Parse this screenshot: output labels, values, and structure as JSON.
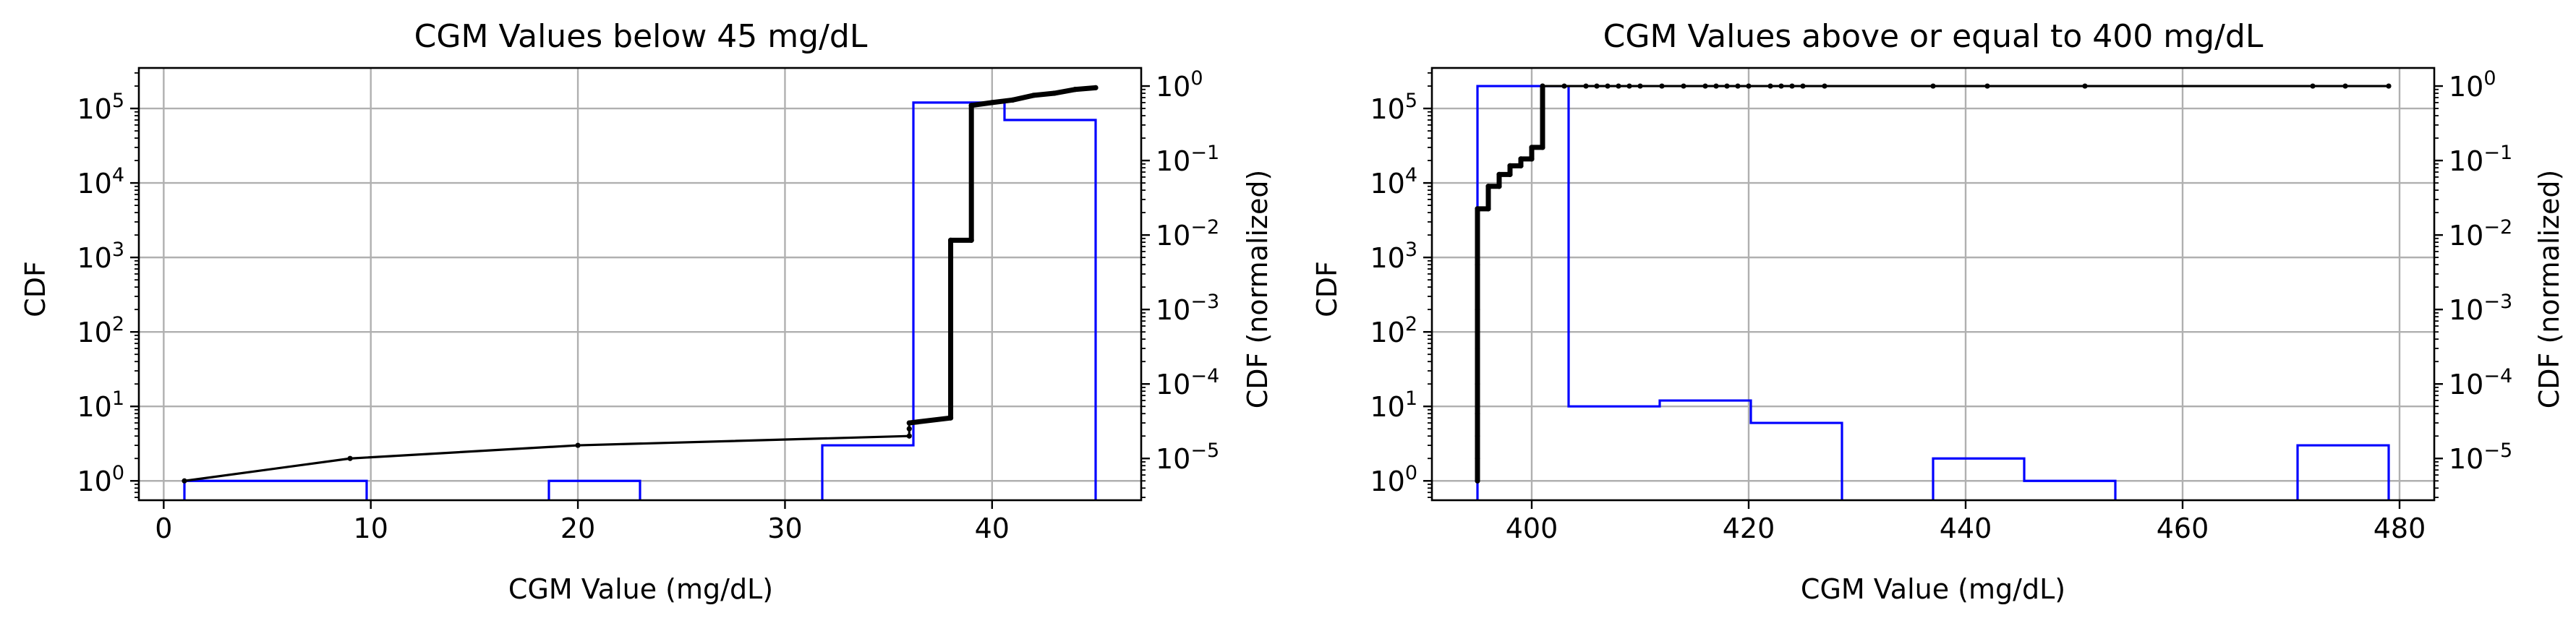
{
  "chart_data": [
    {
      "type": "histogram+step",
      "title": "CGM Values below 45 mg/dL",
      "xlabel": "CGM Value (mg/dL)",
      "ylabel_left": "CDF",
      "ylabel_right": "CDF (normalized)",
      "xlim": [
        -1.2,
        47.2
      ],
      "ylim_left": [
        0.55,
        350000
      ],
      "ylim_right": [
        2.75e-06,
        1.75
      ],
      "xticks": [
        0,
        10,
        20,
        30,
        40
      ],
      "yticks_left": [
        {
          "value": 1,
          "base": "10",
          "exp": "0"
        },
        {
          "value": 10,
          "base": "10",
          "exp": "1"
        },
        {
          "value": 100,
          "base": "10",
          "exp": "2"
        },
        {
          "value": 1000,
          "base": "10",
          "exp": "3"
        },
        {
          "value": 10000,
          "base": "10",
          "exp": "4"
        },
        {
          "value": 100000,
          "base": "10",
          "exp": "5"
        }
      ],
      "yticks_right": [
        {
          "value": 1e-05,
          "base": "10",
          "exp": "−5"
        },
        {
          "value": 0.0001,
          "base": "10",
          "exp": "−4"
        },
        {
          "value": 0.001,
          "base": "10",
          "exp": "−3"
        },
        {
          "value": 0.01,
          "base": "10",
          "exp": "−2"
        },
        {
          "value": 0.1,
          "base": "10",
          "exp": "−1"
        },
        {
          "value": 1,
          "base": "10",
          "exp": "0"
        }
      ],
      "log_scale_y": true,
      "grid": true,
      "histogram_color": "#0000ff",
      "cdf_color": "#000000",
      "histogram_bins": [
        {
          "x0": 1.0,
          "x1": 9.8,
          "count": 1
        },
        {
          "x0": 18.6,
          "x1": 23.0,
          "count": 1
        },
        {
          "x0": 31.8,
          "x1": 36.2,
          "count": 3
        },
        {
          "x0": 36.2,
          "x1": 40.6,
          "count": 120000
        },
        {
          "x0": 40.6,
          "x1": 45.0,
          "count": 70000
        }
      ],
      "cdf_points": [
        {
          "x": 1,
          "y": 1
        },
        {
          "x": 9,
          "y": 2
        },
        {
          "x": 20,
          "y": 3
        },
        {
          "x": 36,
          "y": 4
        },
        {
          "x": 36,
          "y": 5
        },
        {
          "x": 36,
          "y": 6
        },
        {
          "x": 38,
          "y": 7
        },
        {
          "x": 38,
          "y": 1700
        },
        {
          "x": 39,
          "y": 1700
        },
        {
          "x": 39,
          "y": 110000
        },
        {
          "x": 40,
          "y": 120000
        },
        {
          "x": 41,
          "y": 130000
        },
        {
          "x": 42,
          "y": 150000
        },
        {
          "x": 43,
          "y": 160000
        },
        {
          "x": 44,
          "y": 180000
        },
        {
          "x": 45,
          "y": 190000
        }
      ],
      "cdf_bold_from_x": 36
    },
    {
      "type": "histogram+step",
      "title": "CGM Values above or equal to 400 mg/dL",
      "xlabel": "CGM Value (mg/dL)",
      "ylabel_left": "CDF",
      "ylabel_right": "CDF (normalized)",
      "xlim": [
        390.8,
        483.2
      ],
      "ylim_left": [
        0.55,
        350000
      ],
      "ylim_right": [
        2.75e-06,
        1.75
      ],
      "xticks": [
        400,
        420,
        440,
        460,
        480
      ],
      "yticks_left": [
        {
          "value": 1,
          "base": "10",
          "exp": "0"
        },
        {
          "value": 10,
          "base": "10",
          "exp": "1"
        },
        {
          "value": 100,
          "base": "10",
          "exp": "2"
        },
        {
          "value": 1000,
          "base": "10",
          "exp": "3"
        },
        {
          "value": 10000,
          "base": "10",
          "exp": "4"
        },
        {
          "value": 100000,
          "base": "10",
          "exp": "5"
        }
      ],
      "yticks_right": [
        {
          "value": 1e-05,
          "base": "10",
          "exp": "−5"
        },
        {
          "value": 0.0001,
          "base": "10",
          "exp": "−4"
        },
        {
          "value": 0.001,
          "base": "10",
          "exp": "−3"
        },
        {
          "value": 0.01,
          "base": "10",
          "exp": "−2"
        },
        {
          "value": 0.1,
          "base": "10",
          "exp": "−1"
        },
        {
          "value": 1,
          "base": "10",
          "exp": "0"
        }
      ],
      "log_scale_y": true,
      "grid": true,
      "histogram_color": "#0000ff",
      "cdf_color": "#000000",
      "histogram_bins": [
        {
          "x0": 395.0,
          "x1": 403.4,
          "count": 200000
        },
        {
          "x0": 403.4,
          "x1": 411.8,
          "count": 10
        },
        {
          "x0": 411.8,
          "x1": 420.2,
          "count": 12
        },
        {
          "x0": 420.2,
          "x1": 428.6,
          "count": 6
        },
        {
          "x0": 437.0,
          "x1": 445.4,
          "count": 2
        },
        {
          "x0": 445.4,
          "x1": 453.8,
          "count": 1
        },
        {
          "x0": 470.6,
          "x1": 479.0,
          "count": 3
        }
      ],
      "cdf_points": [
        {
          "x": 395,
          "y": 1
        },
        {
          "x": 395,
          "y": 2
        },
        {
          "x": 395,
          "y": 4
        },
        {
          "x": 395,
          "y": 8
        },
        {
          "x": 395,
          "y": 20
        },
        {
          "x": 395,
          "y": 60
        },
        {
          "x": 395,
          "y": 200
        },
        {
          "x": 395,
          "y": 800
        },
        {
          "x": 395,
          "y": 4500
        },
        {
          "x": 396,
          "y": 4500
        },
        {
          "x": 396,
          "y": 9000
        },
        {
          "x": 397,
          "y": 9000
        },
        {
          "x": 397,
          "y": 13000
        },
        {
          "x": 398,
          "y": 13000
        },
        {
          "x": 398,
          "y": 17000
        },
        {
          "x": 399,
          "y": 17000
        },
        {
          "x": 399,
          "y": 21000
        },
        {
          "x": 400,
          "y": 21000
        },
        {
          "x": 400,
          "y": 30000
        },
        {
          "x": 401,
          "y": 30000
        },
        {
          "x": 401,
          "y": 200000
        },
        {
          "x": 403,
          "y": 200000
        },
        {
          "x": 405,
          "y": 200000
        },
        {
          "x": 406,
          "y": 200000
        },
        {
          "x": 407,
          "y": 200000
        },
        {
          "x": 408,
          "y": 200000
        },
        {
          "x": 409,
          "y": 200000
        },
        {
          "x": 410,
          "y": 200000
        },
        {
          "x": 412,
          "y": 200000
        },
        {
          "x": 414,
          "y": 200000
        },
        {
          "x": 416,
          "y": 200000
        },
        {
          "x": 417,
          "y": 200000
        },
        {
          "x": 418,
          "y": 200000
        },
        {
          "x": 419,
          "y": 200000
        },
        {
          "x": 420,
          "y": 200000
        },
        {
          "x": 422,
          "y": 200000
        },
        {
          "x": 423,
          "y": 200000
        },
        {
          "x": 424,
          "y": 200000
        },
        {
          "x": 425,
          "y": 200000
        },
        {
          "x": 427,
          "y": 200000
        },
        {
          "x": 437,
          "y": 200000
        },
        {
          "x": 442,
          "y": 200000
        },
        {
          "x": 451,
          "y": 200000
        },
        {
          "x": 472,
          "y": 200000
        },
        {
          "x": 475,
          "y": 200000
        },
        {
          "x": 479,
          "y": 200000
        }
      ],
      "cdf_bold_until_x": 401
    }
  ]
}
